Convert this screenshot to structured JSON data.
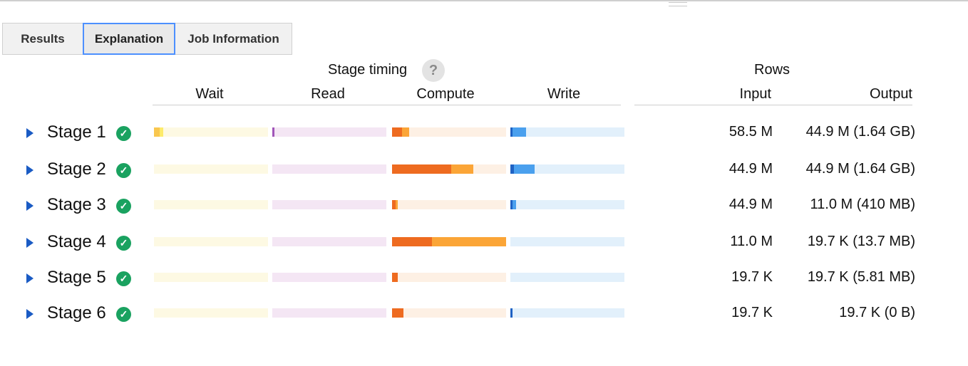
{
  "tabs": [
    {
      "label": "Results",
      "active": false
    },
    {
      "label": "Explanation",
      "active": true
    },
    {
      "label": "Job Information",
      "active": false
    }
  ],
  "header": {
    "stage_timing": "Stage timing",
    "help": "?",
    "rows": "Rows",
    "columns": {
      "wait": "Wait",
      "read": "Read",
      "compute": "Compute",
      "write": "Write",
      "input": "Input",
      "output": "Output"
    }
  },
  "colors": {
    "wait_avg": "#f9c74f",
    "wait_max": "#fdeb6b",
    "wait_bg": "#fdf9e3",
    "read_avg": "#a155b9",
    "read_max": "#d1a0dd",
    "read_bg": "#f4e6f4",
    "compute_avg": "#ee6b20",
    "compute_max": "#fba537",
    "compute_bg": "#fdf0e4",
    "write_avg": "#1f62c4",
    "write_max": "#4aa0ee",
    "write_bg": "#e2f0fb",
    "status_ok": "#1aa260"
  },
  "stages": [
    {
      "name": "Stage 1",
      "status": "complete",
      "input": "58.5 M",
      "output": "44.9 M (1.64 GB)",
      "timing": {
        "wait": [
          0.05,
          0.08
        ],
        "read": [
          0.02,
          0.02
        ],
        "compute": [
          0.09,
          0.15
        ],
        "write": [
          0.02,
          0.14
        ]
      }
    },
    {
      "name": "Stage 2",
      "status": "complete",
      "input": "44.9 M",
      "output": "44.9 M (1.64 GB)",
      "timing": {
        "wait": [
          0,
          0
        ],
        "read": [
          0,
          0
        ],
        "compute": [
          0.52,
          0.71
        ],
        "write": [
          0.03,
          0.21
        ]
      }
    },
    {
      "name": "Stage 3",
      "status": "complete",
      "input": "44.9 M",
      "output": "11.0 M (410 MB)",
      "timing": {
        "wait": [
          0,
          0
        ],
        "read": [
          0,
          0
        ],
        "compute": [
          0.03,
          0.05
        ],
        "write": [
          0.02,
          0.05
        ]
      }
    },
    {
      "name": "Stage 4",
      "status": "complete",
      "input": "11.0 M",
      "output": "19.7 K (13.7 MB)",
      "timing": {
        "wait": [
          0,
          0
        ],
        "read": [
          0,
          0
        ],
        "compute": [
          0.35,
          1.0
        ],
        "write": [
          0,
          0
        ]
      }
    },
    {
      "name": "Stage 5",
      "status": "complete",
      "input": "19.7 K",
      "output": "19.7 K (5.81 MB)",
      "timing": {
        "wait": [
          0,
          0
        ],
        "read": [
          0,
          0
        ],
        "compute": [
          0.05,
          0.05
        ],
        "write": [
          0,
          0
        ]
      }
    },
    {
      "name": "Stage 6",
      "status": "complete",
      "input": "19.7 K",
      "output": "19.7 K (0 B)",
      "timing": {
        "wait": [
          0,
          0
        ],
        "read": [
          0,
          0
        ],
        "compute": [
          0.1,
          0.1
        ],
        "write": [
          0.01,
          0.01
        ]
      }
    }
  ]
}
